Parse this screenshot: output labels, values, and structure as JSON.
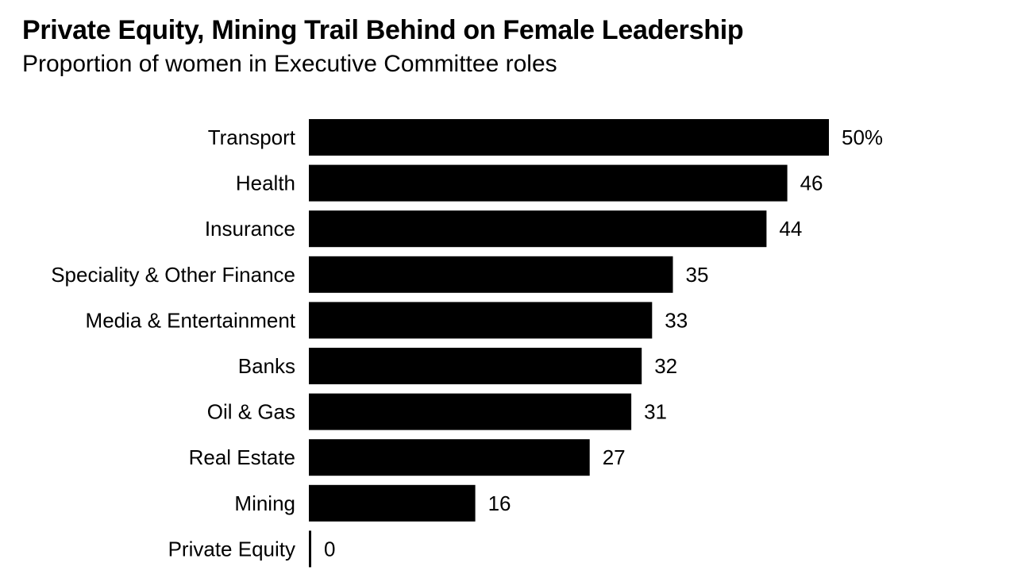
{
  "chart_data": {
    "type": "bar",
    "orientation": "horizontal",
    "title": "Private Equity, Mining Trail Behind on Female Leadership",
    "subtitle": "Proportion of women in Executive Committee roles",
    "categories": [
      "Transport",
      "Health",
      "Insurance",
      "Speciality & Other Finance",
      "Media & Entertainment",
      "Banks",
      "Oil & Gas",
      "Real Estate",
      "Mining",
      "Private Equity"
    ],
    "values": [
      50,
      46,
      44,
      35,
      33,
      32,
      31,
      27,
      16,
      0
    ],
    "data_labels": [
      "50%",
      "46",
      "44",
      "35",
      "33",
      "32",
      "31",
      "27",
      "16",
      "0"
    ],
    "value_unit": "%",
    "xlim": [
      0,
      50
    ],
    "grid": false,
    "legend": "none",
    "bar_color": "#000000"
  }
}
